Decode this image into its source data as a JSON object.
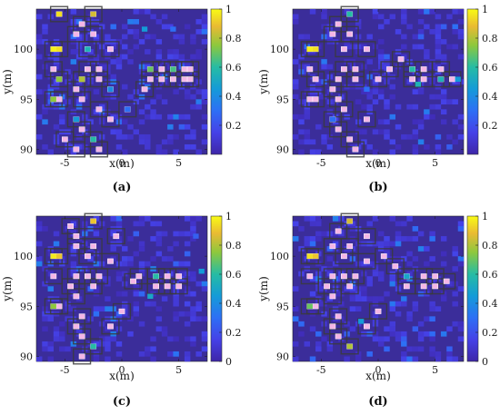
{
  "chart_data": [
    {
      "type": "heatmap",
      "caption_label": "(a)",
      "xlabel": "x(m)",
      "ylabel": "y(m)",
      "xlim": [
        -7.5,
        7.5
      ],
      "ylim": [
        89.5,
        104
      ],
      "x_ticks": [
        -5,
        0,
        5
      ],
      "y_ticks": [
        90,
        95,
        100
      ],
      "colorbar_ticks": [
        "0.2",
        "0.4",
        "0.6",
        "0.8",
        "1"
      ],
      "clim": [
        0,
        1
      ],
      "cell_size_m": 0.5,
      "outline_color": "#3b3b3b",
      "markers": [
        [
          -5.5,
          103.5
        ],
        [
          -2.5,
          103.5
        ],
        [
          -3.5,
          102.5
        ],
        [
          -4,
          101.5
        ],
        [
          -2.5,
          101.5
        ],
        [
          -6,
          100
        ],
        [
          -5.5,
          100
        ],
        [
          -3,
          100
        ],
        [
          -1,
          100
        ],
        [
          -6,
          98
        ],
        [
          -3,
          98
        ],
        [
          -5.5,
          97
        ],
        [
          -3.5,
          97
        ],
        [
          -2,
          97
        ],
        [
          -2,
          98
        ],
        [
          2.5,
          98
        ],
        [
          3.5,
          98
        ],
        [
          4.5,
          98
        ],
        [
          5.5,
          98
        ],
        [
          6,
          98
        ],
        [
          2.5,
          97
        ],
        [
          3.5,
          97
        ],
        [
          4.5,
          97
        ],
        [
          5.5,
          97
        ],
        [
          6,
          97
        ],
        [
          -4,
          96
        ],
        [
          -1,
          96
        ],
        [
          2,
          96
        ],
        [
          -6,
          95
        ],
        [
          -5.5,
          95
        ],
        [
          -3.5,
          95
        ],
        [
          -2,
          94
        ],
        [
          0.5,
          94
        ],
        [
          -4,
          93
        ],
        [
          -1,
          93
        ],
        [
          -3.5,
          92
        ],
        [
          -5,
          91
        ],
        [
          -2.5,
          91
        ],
        [
          -4,
          90
        ],
        [
          -2,
          90
        ]
      ],
      "hot_cells": [
        [
          -5.5,
          103.5,
          0.95
        ],
        [
          -2.5,
          103.5,
          0.85
        ],
        [
          -6,
          100,
          0.98
        ],
        [
          -5.5,
          100,
          0.95
        ],
        [
          -5.5,
          97,
          0.75
        ],
        [
          -3.5,
          97,
          0.8
        ],
        [
          2.5,
          98,
          0.7
        ],
        [
          4.5,
          98,
          0.65
        ],
        [
          -6,
          95,
          0.75
        ],
        [
          -2.5,
          91,
          0.6
        ],
        [
          -4,
          93,
          0.45
        ],
        [
          -1,
          96,
          0.4
        ],
        [
          0.5,
          94,
          0.3
        ],
        [
          2,
          102,
          0.45
        ],
        [
          4.5,
          102,
          0.3
        ],
        [
          -3,
          100,
          0.55
        ]
      ]
    },
    {
      "type": "heatmap",
      "caption_label": "(b)",
      "xlabel": "x(m)",
      "ylabel": "y(m)",
      "xlim": [
        -7.5,
        7.5
      ],
      "ylim": [
        89.5,
        104
      ],
      "x_ticks": [
        -5,
        0,
        5
      ],
      "y_ticks": [
        90,
        95,
        100
      ],
      "colorbar_ticks": [
        "0.2",
        "0.4",
        "0.6",
        "0.8",
        "1"
      ],
      "clim": [
        0,
        1
      ],
      "cell_size_m": 0.5,
      "outline_color": "#3b3b3b",
      "markers": [
        [
          -2.5,
          103.5
        ],
        [
          -3.5,
          102.5
        ],
        [
          -4,
          101.5
        ],
        [
          -2.5,
          101.5
        ],
        [
          -6,
          100
        ],
        [
          -5.5,
          100
        ],
        [
          -3,
          100
        ],
        [
          -1,
          100
        ],
        [
          -6,
          98
        ],
        [
          -3,
          98
        ],
        [
          -5.5,
          97
        ],
        [
          -3.5,
          97
        ],
        [
          -2,
          98
        ],
        [
          -2,
          97
        ],
        [
          3,
          98
        ],
        [
          4,
          98
        ],
        [
          5.5,
          98
        ],
        [
          3,
          97
        ],
        [
          4,
          97
        ],
        [
          5.5,
          97
        ],
        [
          6.5,
          97
        ],
        [
          -4,
          96
        ],
        [
          -6,
          95
        ],
        [
          -5.5,
          95
        ],
        [
          -3.5,
          95
        ],
        [
          -3,
          94
        ],
        [
          -4,
          93
        ],
        [
          -1,
          93
        ],
        [
          -3.5,
          92
        ],
        [
          -2.5,
          91
        ],
        [
          -2,
          90
        ],
        [
          1,
          98
        ],
        [
          2,
          99
        ],
        [
          0,
          97
        ]
      ],
      "hot_cells": [
        [
          -6,
          100,
          0.98
        ],
        [
          -5.5,
          100,
          0.95
        ],
        [
          -2.5,
          103.5,
          0.6
        ],
        [
          3,
          98,
          0.6
        ],
        [
          5.5,
          97,
          0.55
        ],
        [
          -1,
          96,
          0.3
        ],
        [
          -4,
          93,
          0.3
        ],
        [
          3.5,
          96.5,
          0.55
        ],
        [
          7,
          97,
          0.45
        ]
      ]
    },
    {
      "type": "heatmap",
      "caption_label": "(c)",
      "xlabel": "x(m)",
      "ylabel": "y(m)",
      "xlim": [
        -7.5,
        7.5
      ],
      "ylim": [
        89.5,
        104
      ],
      "x_ticks": [
        -5,
        0,
        5
      ],
      "y_ticks": [
        90,
        95,
        100
      ],
      "colorbar_ticks": [
        "0",
        "0.2",
        "0.4",
        "0.6",
        "0.8",
        "1"
      ],
      "clim": [
        0,
        1
      ],
      "cell_size_m": 0.5,
      "outline_color": "#3b3b3b",
      "markers": [
        [
          -2.5,
          103.5
        ],
        [
          -4.5,
          103
        ],
        [
          -4,
          102
        ],
        [
          -0.5,
          102
        ],
        [
          -4,
          101
        ],
        [
          -2.5,
          101
        ],
        [
          -6,
          100
        ],
        [
          -5.5,
          100
        ],
        [
          -3,
          100
        ],
        [
          -1,
          99.5
        ],
        [
          -6,
          98
        ],
        [
          -4,
          98
        ],
        [
          -3,
          98
        ],
        [
          -2,
          98
        ],
        [
          -4.5,
          97
        ],
        [
          -2.5,
          97
        ],
        [
          1.5,
          98
        ],
        [
          3,
          98
        ],
        [
          4,
          98
        ],
        [
          5,
          98
        ],
        [
          3,
          97
        ],
        [
          4,
          97
        ],
        [
          5,
          97
        ],
        [
          1,
          97.5
        ],
        [
          -4,
          96
        ],
        [
          -6,
          95
        ],
        [
          -5.5,
          95
        ],
        [
          -3.5,
          94
        ],
        [
          0,
          94.5
        ],
        [
          -4,
          93
        ],
        [
          -1,
          93
        ],
        [
          -3.5,
          92
        ],
        [
          -2.5,
          91
        ],
        [
          -3.5,
          90
        ]
      ],
      "hot_cells": [
        [
          -6,
          100,
          0.97
        ],
        [
          -5.5,
          100,
          0.9
        ],
        [
          -2.5,
          103.5,
          0.9
        ],
        [
          -6,
          95,
          0.75
        ],
        [
          -2.5,
          91,
          0.6
        ],
        [
          3,
          98,
          0.6
        ],
        [
          7,
          98.5,
          0.45
        ],
        [
          2.5,
          96,
          0.5
        ],
        [
          6.5,
          102,
          0.25
        ]
      ]
    },
    {
      "type": "heatmap",
      "caption_label": "(d)",
      "xlabel": "x(m)",
      "ylabel": "y(m)",
      "xlim": [
        -7.5,
        7.5
      ],
      "ylim": [
        89.5,
        104
      ],
      "x_ticks": [
        -5,
        0,
        5
      ],
      "y_ticks": [
        90,
        95,
        100
      ],
      "colorbar_ticks": [
        "0",
        "0.2",
        "0.4",
        "0.6",
        "0.8",
        "1"
      ],
      "clim": [
        0,
        1
      ],
      "cell_size_m": 0.5,
      "outline_color": "#3b3b3b",
      "markers": [
        [
          -2.5,
          103.5
        ],
        [
          -3.5,
          102.5
        ],
        [
          -1,
          102
        ],
        [
          -4,
          101
        ],
        [
          -2.5,
          101
        ],
        [
          -6,
          100
        ],
        [
          -5.5,
          100
        ],
        [
          -3,
          100
        ],
        [
          0.5,
          100
        ],
        [
          -1,
          99.5
        ],
        [
          -6,
          98
        ],
        [
          -4,
          98
        ],
        [
          -3,
          98
        ],
        [
          -2,
          98
        ],
        [
          -4.5,
          97
        ],
        [
          -2.5,
          97
        ],
        [
          1.5,
          99
        ],
        [
          2.5,
          98
        ],
        [
          4,
          98
        ],
        [
          5,
          98
        ],
        [
          2.5,
          97
        ],
        [
          4,
          97
        ],
        [
          5,
          97
        ],
        [
          6,
          97.5
        ],
        [
          -4,
          96
        ],
        [
          -6,
          95
        ],
        [
          -5.5,
          95
        ],
        [
          -3.5,
          94
        ],
        [
          0,
          94.5
        ],
        [
          -4,
          93
        ],
        [
          -1,
          93
        ],
        [
          -3.5,
          92
        ],
        [
          -2.5,
          91
        ]
      ],
      "hot_cells": [
        [
          -6,
          100,
          0.95
        ],
        [
          -5.5,
          100,
          0.9
        ],
        [
          -2.5,
          103.5,
          0.85
        ],
        [
          -2.5,
          91,
          0.8
        ],
        [
          -6,
          95,
          0.7
        ],
        [
          2.5,
          98,
          0.5
        ],
        [
          -1.5,
          93.5,
          0.45
        ]
      ]
    }
  ]
}
